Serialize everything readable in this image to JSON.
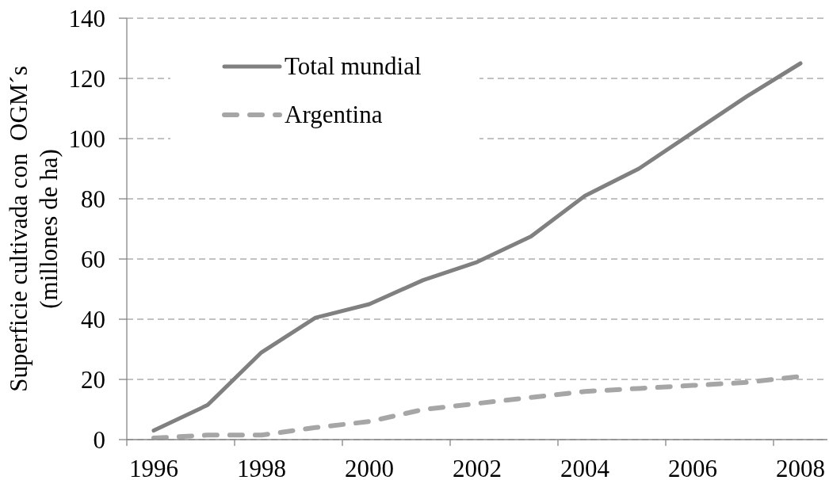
{
  "chart_data": {
    "type": "line",
    "ylabel": "Superficie cultivada con  OGM´s\n(millones de ha)",
    "categories": [
      "1996",
      null,
      "1998",
      null,
      "2000",
      null,
      "2002",
      null,
      "2004",
      null,
      "2006",
      null,
      "2008"
    ],
    "series": [
      {
        "name": "Total mundial",
        "color": "#808080",
        "line_style": "solid",
        "values": [
          3,
          11.5,
          29,
          40.5,
          45,
          53,
          59,
          67.5,
          81,
          90,
          102,
          114,
          125
        ]
      },
      {
        "name": "Argentina",
        "color": "#a6a6a6",
        "line_style": "dashed",
        "values": [
          0.5,
          1.5,
          1.5,
          4,
          6,
          10,
          12,
          14,
          16,
          17,
          18,
          19,
          21
        ]
      }
    ],
    "ylim": [
      0,
      140
    ],
    "yticks": [
      0,
      20,
      40,
      60,
      80,
      100,
      120,
      140
    ],
    "grid": "y",
    "legend": "top left",
    "marker": "none"
  }
}
